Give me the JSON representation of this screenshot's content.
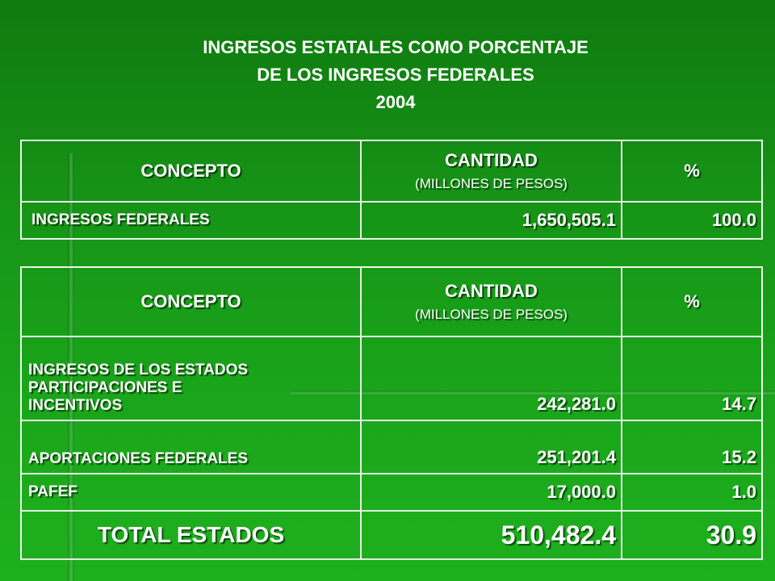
{
  "title": {
    "line1": "INGRESOS ESTATALES COMO PORCENTAJE",
    "line2": "DE LOS INGRESOS FEDERALES",
    "line3": "2004"
  },
  "table1": {
    "headers": {
      "concepto": "CONCEPTO",
      "cantidad": "CANTIDAD",
      "cantidad_sub": "(MILLONES DE PESOS)",
      "pct": "%"
    },
    "rows": [
      {
        "concepto": "INGRESOS FEDERALES",
        "cantidad": "1,650,505.1",
        "pct": "100.0"
      }
    ]
  },
  "table2": {
    "headers": {
      "concepto": "CONCEPTO",
      "cantidad": "CANTIDAD",
      "cantidad_sub": "(MILLONES DE PESOS)",
      "pct": "%"
    },
    "rows": [
      {
        "concepto_line1": "INGRESOS DE LOS ESTADOS",
        "concepto_line2": "PARTICIPACIONES  E",
        "concepto_line3": "INCENTIVOS",
        "cantidad": "242,281.0",
        "pct": "14.7"
      },
      {
        "concepto": "APORTACIONES FEDERALES",
        "cantidad": "251,201.4",
        "pct": "15.2"
      },
      {
        "concepto": "PAFEF",
        "cantidad": "17,000.0",
        "pct": "1.0"
      }
    ],
    "total": {
      "concepto": "TOTAL ESTADOS",
      "cantidad": "510,482.4",
      "pct": "30.9"
    }
  },
  "colors": {
    "background": "#169416",
    "text": "#ffffff",
    "border": "#e6f7e6"
  }
}
